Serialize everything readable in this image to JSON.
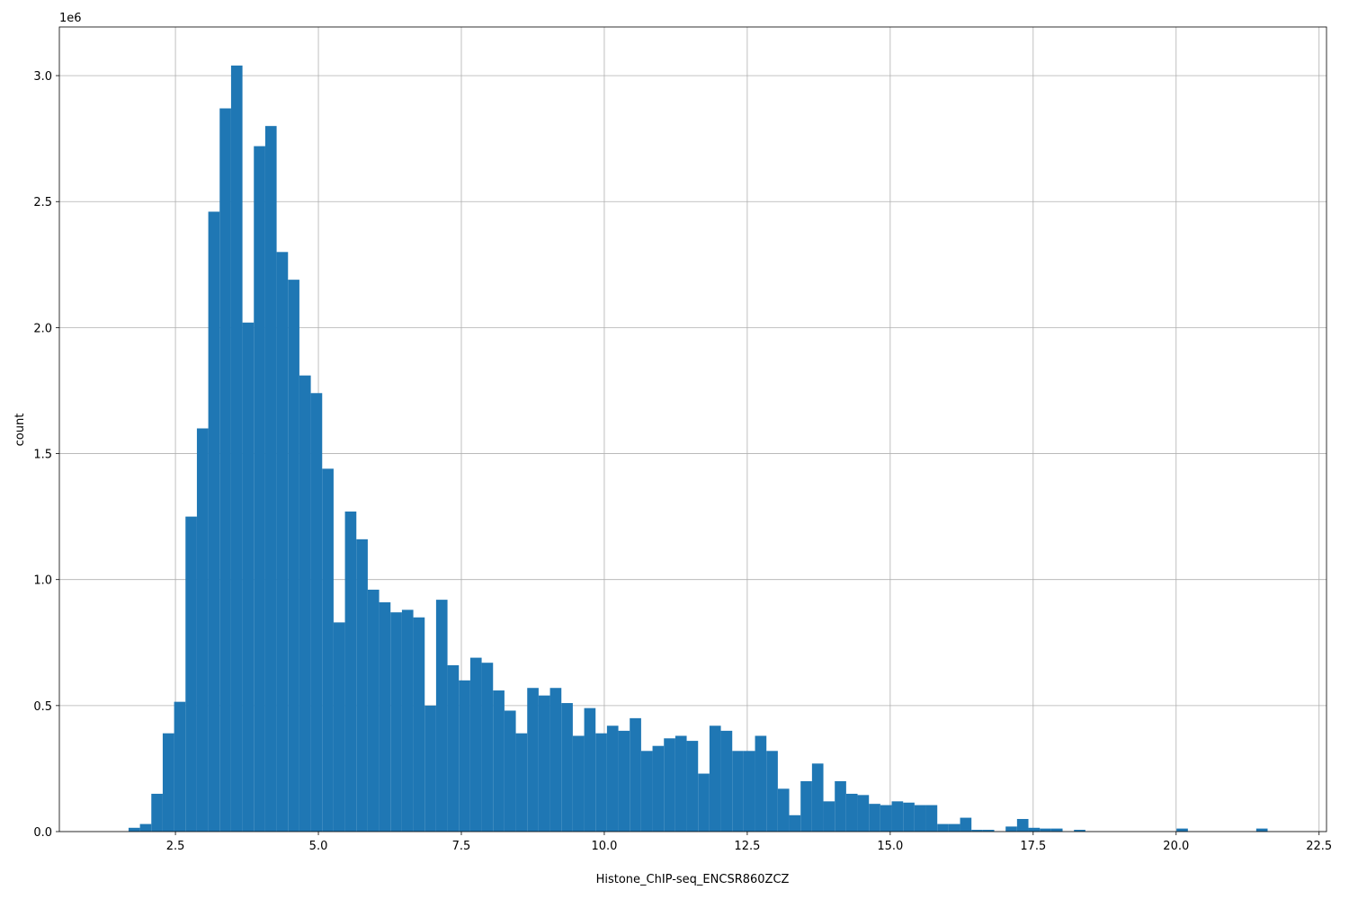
{
  "chart_data": {
    "type": "histogram",
    "x_label": "Histone_ChIP-seq_ENCSR860ZCZ",
    "y_label": "count",
    "y_offset_label": "1e6",
    "color": "#1f77b4",
    "grid": true,
    "bins": [
      1.68,
      1.8792,
      2.0784,
      2.2776,
      2.4768,
      2.676,
      2.8752,
      3.0744,
      3.2736,
      3.4728,
      3.672,
      3.8712,
      4.0704,
      4.2696,
      4.4688,
      4.668,
      4.8672,
      5.0664,
      5.2656,
      5.4648,
      5.664,
      5.8632,
      6.0624,
      6.2616,
      6.4608,
      6.66,
      6.8592,
      7.0584,
      7.2576,
      7.4568,
      7.656,
      7.8552,
      8.0544,
      8.2536,
      8.4528,
      8.652,
      8.8512,
      9.0504,
      9.2496,
      9.4488,
      9.648,
      9.8472,
      10.0464,
      10.2456,
      10.4448,
      10.644,
      10.8432,
      11.0424,
      11.2416,
      11.4408,
      11.64,
      11.8392,
      12.0384,
      12.2376,
      12.4368,
      12.636,
      12.8352,
      13.0344,
      13.2336,
      13.4328,
      13.632,
      13.8312,
      14.0304,
      14.2296,
      14.4288,
      14.628,
      14.8272,
      15.0264,
      15.2256,
      15.4248,
      15.624,
      15.8232,
      16.0224,
      16.2216,
      16.4208,
      16.62,
      16.8192,
      17.0184,
      17.2176,
      17.4168,
      17.616,
      17.8152,
      18.0144,
      18.2136,
      18.4128,
      18.612,
      18.8112,
      19.0104,
      19.2096,
      19.4088,
      19.608,
      19.8072,
      20.0064,
      20.2056,
      20.4048,
      20.604,
      20.8032,
      21.0024,
      21.2016,
      21.4008,
      21.6
    ],
    "values": [
      0.015,
      0.03,
      0.15,
      0.39,
      0.515,
      1.25,
      1.6,
      2.46,
      2.87,
      3.04,
      2.02,
      2.72,
      2.8,
      2.3,
      2.19,
      1.81,
      1.74,
      1.44,
      0.83,
      1.27,
      1.16,
      0.96,
      0.91,
      0.87,
      0.88,
      0.85,
      0.5,
      0.92,
      0.66,
      0.6,
      0.69,
      0.67,
      0.56,
      0.48,
      0.39,
      0.57,
      0.54,
      0.57,
      0.51,
      0.38,
      0.49,
      0.39,
      0.42,
      0.4,
      0.45,
      0.32,
      0.34,
      0.37,
      0.38,
      0.36,
      0.23,
      0.42,
      0.4,
      0.32,
      0.32,
      0.38,
      0.32,
      0.17,
      0.065,
      0.2,
      0.27,
      0.12,
      0.2,
      0.15,
      0.145,
      0.11,
      0.105,
      0.12,
      0.115,
      0.105,
      0.105,
      0.03,
      0.03,
      0.055,
      0.007,
      0.007,
      0,
      0.02,
      0.05,
      0.015,
      0.012,
      0.012,
      0,
      0.007,
      0,
      0,
      0,
      0,
      0,
      0,
      0,
      0,
      0.012,
      0,
      0,
      0,
      0,
      0,
      0,
      0.012
    ],
    "xlim": [
      0.47,
      22.63
    ],
    "ylim": [
      0,
      3.193
    ],
    "xticks": [
      2.5,
      {
        "value": 5,
        "label": "5.0"
      },
      7.5,
      {
        "value": 10,
        "label": "10.0"
      },
      12.5,
      {
        "value": 15,
        "label": "15.0"
      },
      17.5,
      {
        "value": 20,
        "label": "20.0"
      },
      22.5
    ],
    "yticks": [
      {
        "value": 0,
        "label": "0.0"
      },
      0.5,
      {
        "value": 1,
        "label": "1.0"
      },
      1.5,
      {
        "value": 2,
        "label": "2.0"
      },
      2.5,
      {
        "value": 3,
        "label": "3.0"
      }
    ]
  }
}
